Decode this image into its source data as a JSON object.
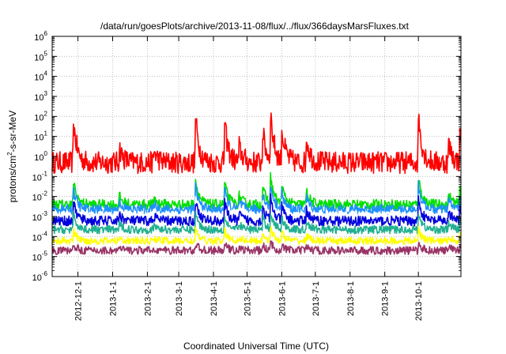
{
  "chart_data": {
    "type": "line",
    "title": "/data/run/goesPlots/archive/2013-11-08/flux/../flux/366daysMarsFluxes.txt",
    "xlabel": "Coordinated Universal Time (UTC)",
    "ylabel": "protons/cm²-s-sr-MeV",
    "ylabel_parts": {
      "main": "protons/cm",
      "sup": "2",
      "tail": "-s-sr-MeV"
    },
    "y_scale": "log",
    "ylim": [
      1e-06,
      1000000.0
    ],
    "y_ticks": [
      {
        "base": "10",
        "exp": "-6"
      },
      {
        "base": "10",
        "exp": "-5"
      },
      {
        "base": "10",
        "exp": "-4"
      },
      {
        "base": "10",
        "exp": "-3"
      },
      {
        "base": "10",
        "exp": "-2"
      },
      {
        "base": "10",
        "exp": "-1"
      },
      {
        "base": "10",
        "exp": "0"
      },
      {
        "base": "10",
        "exp": "1"
      },
      {
        "base": "10",
        "exp": "2"
      },
      {
        "base": "10",
        "exp": "3"
      },
      {
        "base": "10",
        "exp": "4"
      },
      {
        "base": "10",
        "exp": "5"
      },
      {
        "base": "10",
        "exp": "6"
      }
    ],
    "xlim": [
      "2012-11-08",
      "2013-11-08"
    ],
    "x_ticks": [
      "2012-12-1",
      "2013-1-1",
      "2013-2-1",
      "2013-3-1",
      "2013-4-1",
      "2013-5-1",
      "2013-6-1",
      "2013-7-1",
      "2013-8-1",
      "2013-9-1",
      "2013-10-1"
    ],
    "grid": true,
    "events": [
      {
        "date": "2012-11-27",
        "peak": 60
      },
      {
        "date": "2013-01-07",
        "peak": 3
      },
      {
        "date": "2013-02-07",
        "peak": 2
      },
      {
        "date": "2013-03-16",
        "peak": 100
      },
      {
        "date": "2013-04-11",
        "peak": 50
      },
      {
        "date": "2013-04-24",
        "peak": 3
      },
      {
        "date": "2013-05-15",
        "peak": 20
      },
      {
        "date": "2013-05-22",
        "peak": 120
      },
      {
        "date": "2013-06-01",
        "peak": 20
      },
      {
        "date": "2013-06-23",
        "peak": 10
      },
      {
        "date": "2013-10-01",
        "peak": 150
      },
      {
        "date": "2013-10-28",
        "peak": 5
      },
      {
        "date": "2013-11-07",
        "peak": 8
      }
    ],
    "series": [
      {
        "color": "#ff0000",
        "base": 0.5,
        "noise": 0.55,
        "response": 1.0
      },
      {
        "color": "#00e000",
        "base": 0.004,
        "noise": 0.25,
        "response": 0.55
      },
      {
        "color": "#1e90ff",
        "base": 0.0022,
        "noise": 0.25,
        "response": 0.5
      },
      {
        "color": "#ffffff",
        "base": 0.0012,
        "noise": 0.18,
        "response": 0.4
      },
      {
        "color": "#0000dd",
        "base": 0.0006,
        "noise": 0.25,
        "response": 0.45
      },
      {
        "color": "#20b090",
        "base": 0.00022,
        "noise": 0.2,
        "response": 0.35
      },
      {
        "color": "#ffff00",
        "base": 6e-05,
        "noise": 0.18,
        "response": 0.25
      },
      {
        "color": "#993366",
        "base": 2e-05,
        "noise": 0.2,
        "response": 0.15
      }
    ]
  }
}
